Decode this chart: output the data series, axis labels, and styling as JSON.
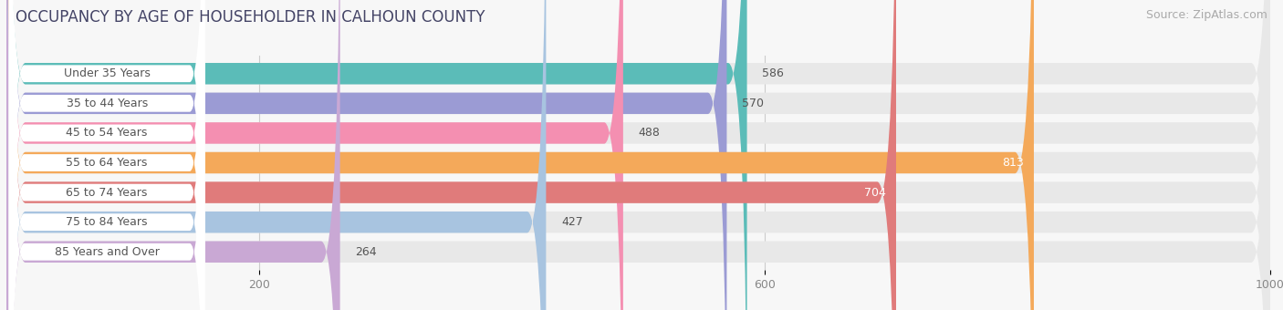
{
  "title": "OCCUPANCY BY AGE OF HOUSEHOLDER IN CALHOUN COUNTY",
  "source": "Source: ZipAtlas.com",
  "categories": [
    "Under 35 Years",
    "35 to 44 Years",
    "45 to 54 Years",
    "55 to 64 Years",
    "65 to 74 Years",
    "75 to 84 Years",
    "85 Years and Over"
  ],
  "values": [
    586,
    570,
    488,
    813,
    704,
    427,
    264
  ],
  "bar_colors": [
    "#5bbcb8",
    "#9b9bd4",
    "#f48fb1",
    "#f4a95a",
    "#e07b7b",
    "#a8c4e0",
    "#c9a8d4"
  ],
  "value_inside_color": [
    "#333333",
    "#333333",
    "#333333",
    "#ffffff",
    "#ffffff",
    "#333333",
    "#333333"
  ],
  "xlim_max": 1000,
  "xticks": [
    200,
    600,
    1000
  ],
  "background_color": "#f7f7f7",
  "bar_bg_color": "#e8e8e8",
  "title_fontsize": 12,
  "source_fontsize": 9,
  "label_fontsize": 9,
  "value_fontsize": 9,
  "value_threshold": 650
}
